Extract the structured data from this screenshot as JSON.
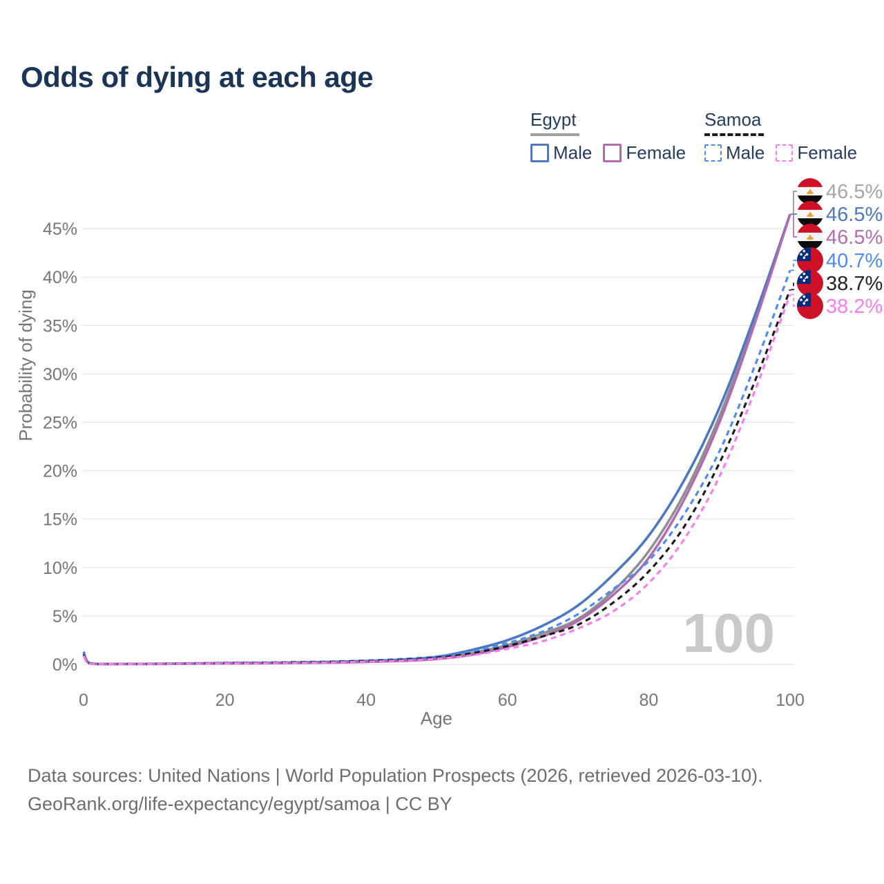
{
  "page": {
    "title": "Odds of dying at each age",
    "watermark_age": "100"
  },
  "legend": {
    "groups": [
      {
        "label": "Egypt",
        "line_style": "solid",
        "underline_color": "#9e9e9e",
        "items": [
          {
            "label": "Male",
            "color": "#4b78c0",
            "dashed": false
          },
          {
            "label": "Female",
            "color": "#b16cb1",
            "dashed": false
          }
        ]
      },
      {
        "label": "Samoa",
        "line_style": "dashed",
        "underline_color": "#1a1a1a",
        "items": [
          {
            "label": "Male",
            "color": "#4e8bf0",
            "dashed": true
          },
          {
            "label": "Female",
            "color": "#f97cf0",
            "dashed": true
          }
        ]
      }
    ]
  },
  "footer": {
    "line1": "Data sources: United Nations | World Population Prospects (2026, retrieved 2026-03-10).",
    "line2": "GeoRank.org/life-expectancy/egypt/samoa | CC BY"
  },
  "chart_data": {
    "type": "line",
    "title": "Odds of dying at each age",
    "xlabel": "Age",
    "ylabel": "Probability of dying",
    "xlim": [
      0,
      100
    ],
    "ylim_percent": [
      0,
      48
    ],
    "x_ticks": [
      0,
      20,
      40,
      60,
      80,
      100
    ],
    "y_ticks_percent": [
      0,
      5,
      10,
      15,
      20,
      25,
      30,
      35,
      40,
      45
    ],
    "grid": true,
    "legend_position": "top-right",
    "ages": [
      0,
      1,
      5,
      10,
      15,
      20,
      25,
      30,
      35,
      40,
      45,
      50,
      55,
      60,
      65,
      70,
      75,
      80,
      85,
      90,
      95,
      100
    ],
    "series": [
      {
        "name": "Egypt - Both sexes",
        "slug": "egypt-both",
        "country": "egypt",
        "color": "#8f8f8f",
        "label_color": "#a6a6a6",
        "dashed": false,
        "end_label": "46.5%",
        "values_percent": [
          1.2,
          0.08,
          0.045,
          0.05,
          0.08,
          0.11,
          0.13,
          0.17,
          0.22,
          0.3,
          0.43,
          0.66,
          1.2,
          2.0,
          3.2,
          4.7,
          7.6,
          11.7,
          17.6,
          25.6,
          35.5,
          46.5
        ]
      },
      {
        "name": "Egypt - Male",
        "slug": "egypt-male",
        "country": "egypt",
        "color": "#4b78c0",
        "label_color": "#4b78c0",
        "dashed": false,
        "end_label": "46.5%",
        "values_percent": [
          1.3,
          0.09,
          0.05,
          0.06,
          0.09,
          0.13,
          0.16,
          0.2,
          0.26,
          0.35,
          0.5,
          0.78,
          1.5,
          2.5,
          4.0,
          6.1,
          9.3,
          13.3,
          19.0,
          26.5,
          36.0,
          46.5
        ]
      },
      {
        "name": "Egypt - Female",
        "slug": "egypt-female",
        "country": "egypt",
        "color": "#b16cb1",
        "label_color": "#b16cb1",
        "dashed": false,
        "end_label": "46.5%",
        "values_percent": [
          1.1,
          0.07,
          0.04,
          0.045,
          0.07,
          0.09,
          0.11,
          0.14,
          0.18,
          0.25,
          0.36,
          0.55,
          1.0,
          1.8,
          2.9,
          4.5,
          7.2,
          11.0,
          17.0,
          25.0,
          35.2,
          46.5
        ]
      },
      {
        "name": "Samoa - Male",
        "slug": "samoa-male",
        "country": "samoa",
        "color": "#4e8bf0",
        "label_color": "#4e8bf0",
        "dashed": true,
        "end_label": "40.7%",
        "values_percent": [
          1.1,
          0.08,
          0.05,
          0.07,
          0.1,
          0.15,
          0.19,
          0.24,
          0.3,
          0.4,
          0.56,
          0.82,
          1.35,
          2.2,
          3.4,
          5.2,
          7.8,
          10.7,
          15.5,
          22.0,
          30.8,
          40.7
        ]
      },
      {
        "name": "Samoa - Both sexes",
        "slug": "samoa-both",
        "country": "samoa",
        "color": "#1c1c1c",
        "label_color": "#222222",
        "dashed": true,
        "end_label": "38.7%",
        "values_percent": [
          1.0,
          0.07,
          0.045,
          0.06,
          0.09,
          0.13,
          0.16,
          0.2,
          0.26,
          0.34,
          0.47,
          0.7,
          1.15,
          1.9,
          2.9,
          4.1,
          6.4,
          9.6,
          14.2,
          20.8,
          29.2,
          38.7
        ]
      },
      {
        "name": "Samoa - Female",
        "slug": "samoa-female",
        "country": "samoa",
        "color": "#f97cf0",
        "label_color": "#f97cf0",
        "dashed": true,
        "end_label": "38.2%",
        "values_percent": [
          0.9,
          0.06,
          0.04,
          0.05,
          0.07,
          0.1,
          0.13,
          0.16,
          0.21,
          0.28,
          0.39,
          0.58,
          0.95,
          1.6,
          2.4,
          3.7,
          5.5,
          8.4,
          12.9,
          19.4,
          28.2,
          38.2
        ]
      }
    ],
    "flag_colors": {
      "egypt_red": "#ce1126",
      "egypt_white": "#f5f5f5",
      "egypt_black": "#0b0b0b",
      "egypt_gold": "#e8a33d",
      "samoa_red": "#ce1126",
      "samoa_blue": "#002b7f",
      "samoa_star": "#ffffff"
    }
  }
}
